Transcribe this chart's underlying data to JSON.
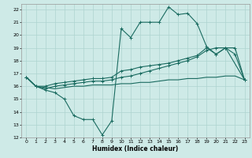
{
  "xlabel": "Humidex (Indice chaleur)",
  "bg_color": "#ceeae7",
  "grid_color": "#aed4d0",
  "line_color": "#1a6b60",
  "xlim": [
    -0.5,
    23.5
  ],
  "ylim": [
    12,
    22.4
  ],
  "xticks": [
    0,
    1,
    2,
    3,
    4,
    5,
    6,
    7,
    8,
    9,
    10,
    11,
    12,
    13,
    14,
    15,
    16,
    17,
    18,
    19,
    20,
    21,
    22,
    23
  ],
  "yticks": [
    12,
    13,
    14,
    15,
    16,
    17,
    18,
    19,
    20,
    21,
    22
  ],
  "line1_x": [
    0,
    1,
    2,
    3,
    4,
    5,
    6,
    7,
    8,
    9,
    10,
    11,
    12,
    13,
    14,
    15,
    16,
    17,
    18,
    19,
    20,
    21,
    23
  ],
  "line1_y": [
    16.7,
    16.0,
    15.7,
    15.5,
    15.0,
    13.7,
    13.4,
    13.4,
    12.2,
    13.3,
    20.5,
    19.8,
    21.0,
    21.0,
    21.0,
    22.2,
    21.6,
    21.7,
    20.9,
    19.1,
    18.5,
    19.0,
    16.5
  ],
  "line2_x": [
    0,
    1,
    2,
    3,
    4,
    5,
    6,
    7,
    8,
    9,
    10,
    11,
    12,
    13,
    14,
    15,
    16,
    17,
    18,
    19,
    20,
    21,
    22,
    23
  ],
  "line2_y": [
    16.7,
    16.0,
    16.0,
    16.2,
    16.3,
    16.4,
    16.5,
    16.6,
    16.6,
    16.7,
    17.2,
    17.3,
    17.5,
    17.6,
    17.7,
    17.8,
    18.0,
    18.2,
    18.4,
    19.0,
    18.5,
    19.0,
    19.0,
    16.5
  ],
  "line3_x": [
    0,
    1,
    2,
    3,
    4,
    5,
    6,
    7,
    8,
    9,
    10,
    11,
    12,
    13,
    14,
    15,
    16,
    17,
    18,
    19,
    20,
    21,
    22,
    23
  ],
  "line3_y": [
    16.7,
    16.0,
    15.9,
    15.8,
    15.9,
    16.0,
    16.0,
    16.1,
    16.1,
    16.1,
    16.2,
    16.2,
    16.3,
    16.3,
    16.4,
    16.5,
    16.5,
    16.6,
    16.6,
    16.7,
    16.7,
    16.8,
    16.8,
    16.5
  ],
  "line4_x": [
    0,
    1,
    2,
    3,
    4,
    5,
    6,
    7,
    8,
    9,
    10,
    11,
    12,
    13,
    14,
    15,
    16,
    17,
    18,
    19,
    20,
    21,
    22,
    23
  ],
  "line4_y": [
    16.7,
    16.0,
    15.8,
    16.0,
    16.1,
    16.2,
    16.3,
    16.4,
    16.4,
    16.5,
    16.7,
    16.8,
    17.0,
    17.2,
    17.4,
    17.6,
    17.8,
    18.0,
    18.3,
    18.8,
    19.0,
    19.0,
    18.5,
    16.5
  ]
}
